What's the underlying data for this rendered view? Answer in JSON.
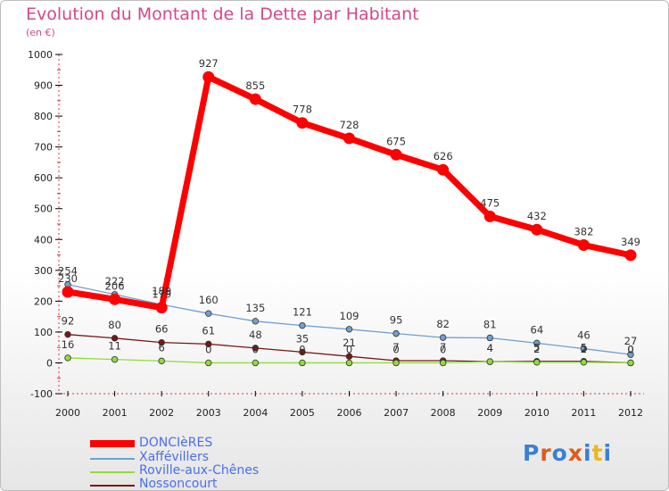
{
  "chart_data": {
    "type": "line",
    "title": "Evolution du Montant de la Dette par Habitant",
    "subtitle": "(en €)",
    "x": [
      2000,
      2001,
      2002,
      2003,
      2004,
      2005,
      2006,
      2007,
      2008,
      2009,
      2010,
      2011,
      2012
    ],
    "ylim": [
      -100,
      1000
    ],
    "yticks": [
      -100,
      0,
      100,
      200,
      300,
      400,
      500,
      600,
      700,
      800,
      900,
      1000
    ],
    "grid": false,
    "legend_position": "bottom-left",
    "series": [
      {
        "name": "DONCIèRES",
        "color": "#ff0000",
        "values": [
          230,
          206,
          179,
          927,
          855,
          778,
          728,
          675,
          626,
          475,
          432,
          382,
          349
        ]
      },
      {
        "name": "Xaffévillers",
        "color": "#6fa0d0",
        "values": [
          254,
          222,
          189,
          160,
          135,
          121,
          109,
          95,
          82,
          81,
          64,
          46,
          27
        ]
      },
      {
        "name": "Roville-aux-Chênes",
        "color": "#8fdc3a",
        "values": [
          16,
          11,
          6,
          0,
          0,
          0,
          0,
          0,
          0,
          4,
          2,
          2,
          0
        ]
      },
      {
        "name": "Nossoncourt",
        "color": "#7a1515",
        "values": [
          92,
          80,
          66,
          61,
          48,
          35,
          21,
          7,
          7,
          4,
          5,
          5,
          0
        ]
      }
    ]
  },
  "logo": {
    "letters": [
      "P",
      "r",
      "o",
      "x",
      "i",
      "t",
      "i"
    ],
    "colors": [
      "#3b7fd4",
      "#e05a1a",
      "#3b7fd4",
      "#e05a1a",
      "#3b7fd4",
      "#e8b81e",
      "#3b7fd4"
    ]
  }
}
